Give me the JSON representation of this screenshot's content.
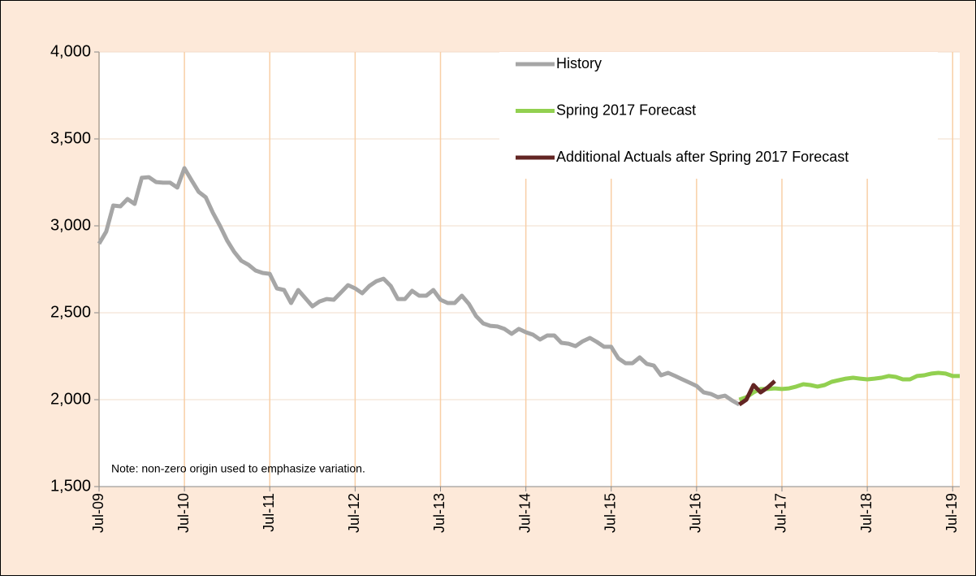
{
  "chart_data": {
    "type": "line",
    "annotation": "Note: non-zero origin used to emphasize variation.",
    "categories": [
      "Jul-09",
      null,
      null,
      null,
      null,
      null,
      null,
      null,
      null,
      null,
      null,
      null,
      "Jul-10",
      null,
      null,
      null,
      null,
      null,
      null,
      null,
      null,
      null,
      null,
      null,
      "Jul-11",
      null,
      null,
      null,
      null,
      null,
      null,
      null,
      null,
      null,
      null,
      null,
      "Jul-12",
      null,
      null,
      null,
      null,
      null,
      null,
      null,
      null,
      null,
      null,
      null,
      "Jul-13",
      null,
      null,
      null,
      null,
      null,
      null,
      null,
      null,
      null,
      null,
      null,
      "Jul-14",
      null,
      null,
      null,
      null,
      null,
      null,
      null,
      null,
      null,
      null,
      null,
      "Jul-15",
      null,
      null,
      null,
      null,
      null,
      null,
      null,
      null,
      null,
      null,
      null,
      "Jul-16",
      null,
      null,
      null,
      null,
      null,
      null,
      null,
      null,
      null,
      null,
      null,
      "Jul-17",
      null,
      null,
      null,
      null,
      null,
      null,
      null,
      null,
      null,
      null,
      null,
      "Jul-18",
      null,
      null,
      null,
      null,
      null,
      null,
      null,
      null,
      null,
      null,
      null,
      "Jul-19",
      null
    ],
    "series": [
      {
        "name": "History",
        "color": "#a6a6a6",
        "values": [
          2897,
          2967,
          3117,
          3112,
          3154,
          3126,
          3276,
          3280,
          3252,
          3248,
          3248,
          3220,
          3332,
          3262,
          3196,
          3164,
          3075,
          3000,
          2916,
          2850,
          2799,
          2776,
          2743,
          2729,
          2724,
          2640,
          2631,
          2556,
          2631,
          2584,
          2537,
          2565,
          2579,
          2575,
          2617,
          2659,
          2640,
          2612,
          2654,
          2682,
          2696,
          2654,
          2579,
          2579,
          2626,
          2598,
          2598,
          2631,
          2575,
          2556,
          2556,
          2598,
          2551,
          2481,
          2439,
          2425,
          2421,
          2407,
          2379,
          2407,
          2388,
          2374,
          2346,
          2369,
          2369,
          2327,
          2322,
          2308,
          2336,
          2355,
          2332,
          2304,
          2304,
          2238,
          2210,
          2210,
          2243,
          2206,
          2196,
          2140,
          2154,
          2136,
          2117,
          2098,
          2079,
          2042,
          2033,
          2014,
          2023,
          1995,
          1972,
          null,
          null,
          null,
          null,
          null,
          null,
          null,
          null,
          null,
          null,
          null,
          null,
          null,
          null,
          null,
          null,
          null,
          null,
          null,
          null,
          null,
          null,
          null,
          null,
          null,
          null,
          null,
          null,
          null,
          null,
          null
        ]
      },
      {
        "name": "Spring 2017 Forecast",
        "color": "#92d050",
        "values": [
          null,
          null,
          null,
          null,
          null,
          null,
          null,
          null,
          null,
          null,
          null,
          null,
          null,
          null,
          null,
          null,
          null,
          null,
          null,
          null,
          null,
          null,
          null,
          null,
          null,
          null,
          null,
          null,
          null,
          null,
          null,
          null,
          null,
          null,
          null,
          null,
          null,
          null,
          null,
          null,
          null,
          null,
          null,
          null,
          null,
          null,
          null,
          null,
          null,
          null,
          null,
          null,
          null,
          null,
          null,
          null,
          null,
          null,
          null,
          null,
          null,
          null,
          null,
          null,
          null,
          null,
          null,
          null,
          null,
          null,
          null,
          null,
          null,
          null,
          null,
          null,
          null,
          null,
          null,
          null,
          null,
          null,
          null,
          null,
          null,
          null,
          null,
          null,
          null,
          null,
          2000,
          2014,
          2042,
          2061,
          2061,
          2065,
          2061,
          2065,
          2075,
          2089,
          2084,
          2075,
          2084,
          2103,
          2112,
          2121,
          2126,
          2121,
          2117,
          2121,
          2126,
          2136,
          2131,
          2117,
          2117,
          2136,
          2140,
          2150,
          2154,
          2150,
          2136,
          2136
        ]
      },
      {
        "name": "Additional Actuals after Spring 2017 Forecast",
        "color": "#632523",
        "values": [
          null,
          null,
          null,
          null,
          null,
          null,
          null,
          null,
          null,
          null,
          null,
          null,
          null,
          null,
          null,
          null,
          null,
          null,
          null,
          null,
          null,
          null,
          null,
          null,
          null,
          null,
          null,
          null,
          null,
          null,
          null,
          null,
          null,
          null,
          null,
          null,
          null,
          null,
          null,
          null,
          null,
          null,
          null,
          null,
          null,
          null,
          null,
          null,
          null,
          null,
          null,
          null,
          null,
          null,
          null,
          null,
          null,
          null,
          null,
          null,
          null,
          null,
          null,
          null,
          null,
          null,
          null,
          null,
          null,
          null,
          null,
          null,
          null,
          null,
          null,
          null,
          null,
          null,
          null,
          null,
          null,
          null,
          null,
          null,
          null,
          null,
          null,
          null,
          null,
          null,
          1972,
          2000,
          2084,
          2042,
          2070,
          2107,
          null,
          null,
          null,
          null,
          null,
          null,
          null,
          null,
          null,
          null,
          null,
          null,
          null,
          null,
          null,
          null,
          null,
          null,
          null,
          null,
          null,
          null,
          null,
          null,
          null,
          null
        ]
      }
    ],
    "ylim": [
      1500,
      4000
    ],
    "yticks": [
      {
        "value": 1500,
        "label": "1,500"
      },
      {
        "value": 2000,
        "label": "2,000"
      },
      {
        "value": 2500,
        "label": "2,500"
      },
      {
        "value": 3000,
        "label": "3,000"
      },
      {
        "value": 3500,
        "label": "3,500"
      },
      {
        "value": 4000,
        "label": "4,000"
      }
    ],
    "grid": true,
    "legend": "top-right"
  }
}
